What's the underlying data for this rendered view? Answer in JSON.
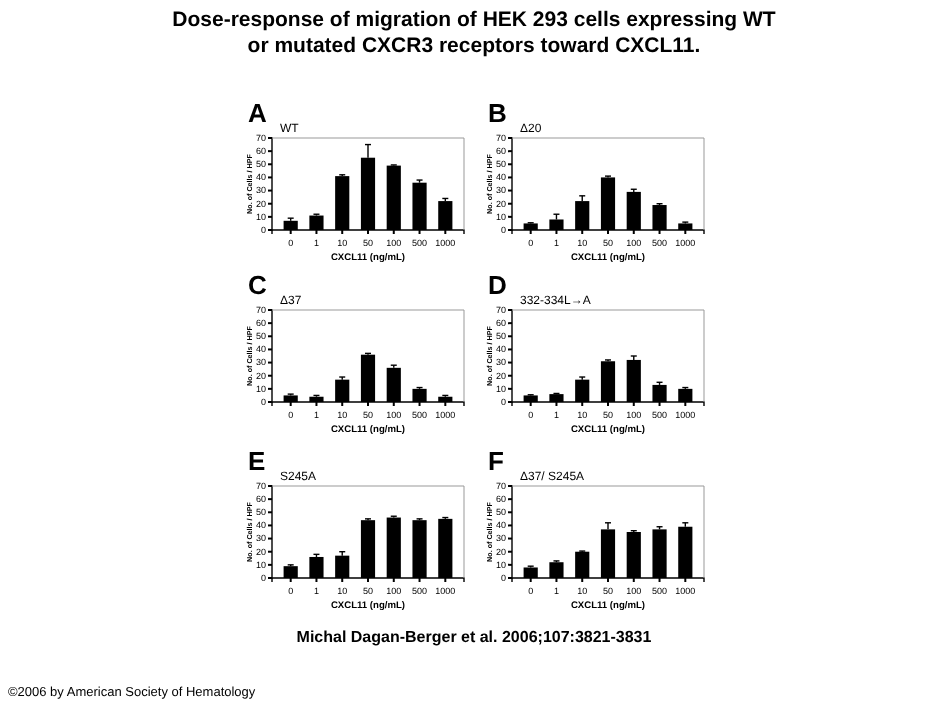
{
  "chart_data": [
    {
      "type": "bar",
      "title": "A",
      "subtitle": "WT",
      "xlabel": "CXCL11 (ng/mL)",
      "ylabel": "No. of Cells / HPF",
      "categories": [
        "0",
        "1",
        "10",
        "50",
        "100",
        "500",
        "1000"
      ],
      "values": [
        7,
        11,
        41,
        55,
        49,
        36,
        22
      ],
      "errors": [
        2,
        1,
        1,
        10,
        0.5,
        2,
        2
      ],
      "color": "#000000",
      "ylim": [
        0,
        70
      ],
      "yticks": [
        0,
        10,
        20,
        30,
        40,
        50,
        60,
        70
      ],
      "annotations": [
        "Dose-response of migration of HEK 293 cells expressing WT or mutated CXCR3 receptors toward CXCL11."
      ]
    },
    {
      "type": "bar",
      "title": "B",
      "subtitle": "Δ20",
      "xlabel": "CXCL11 (ng/mL)",
      "ylabel": "No. of Cells / HPF",
      "categories": [
        "0",
        "1",
        "10",
        "50",
        "100",
        "500",
        "1000"
      ],
      "values": [
        5,
        8,
        22,
        40,
        29,
        19,
        5
      ],
      "errors": [
        0.5,
        4,
        4,
        1,
        2,
        1,
        1
      ],
      "color": "#000000",
      "ylim": [
        0,
        70
      ],
      "yticks": [
        0,
        10,
        20,
        30,
        40,
        50,
        60,
        70
      ]
    },
    {
      "type": "bar",
      "title": "C",
      "subtitle": "Δ37",
      "xlabel": "CXCL11 (ng/mL)",
      "ylabel": "No. of Cells / HPF",
      "categories": [
        "0",
        "1",
        "10",
        "50",
        "100",
        "500",
        "1000"
      ],
      "values": [
        5,
        4,
        17,
        36,
        26,
        10,
        4
      ],
      "errors": [
        1,
        1,
        2,
        1,
        2,
        1,
        1
      ],
      "color": "#000000",
      "ylim": [
        0,
        70
      ],
      "yticks": [
        0,
        10,
        20,
        30,
        40,
        50,
        60,
        70
      ]
    },
    {
      "type": "bar",
      "title": "D",
      "subtitle": "332-334L→A",
      "xlabel": "CXCL11 (ng/mL)",
      "ylabel": "No. of Cells / HPF",
      "categories": [
        "0",
        "1",
        "10",
        "50",
        "100",
        "500",
        "1000"
      ],
      "values": [
        5,
        6,
        17,
        31,
        32,
        13,
        10
      ],
      "errors": [
        0.5,
        0.5,
        2,
        1,
        3,
        2,
        1
      ],
      "color": "#000000",
      "ylim": [
        0,
        70
      ],
      "yticks": [
        0,
        10,
        20,
        30,
        40,
        50,
        60,
        70
      ]
    },
    {
      "type": "bar",
      "title": "E",
      "subtitle": "S245A",
      "xlabel": "CXCL11 (ng/mL)",
      "ylabel": "No. of Cells / HPF",
      "categories": [
        "0",
        "1",
        "10",
        "50",
        "100",
        "500",
        "1000"
      ],
      "values": [
        9,
        16,
        17,
        44,
        46,
        44,
        45
      ],
      "errors": [
        1,
        2,
        3,
        1,
        1,
        1,
        1
      ],
      "color": "#000000",
      "ylim": [
        0,
        70
      ],
      "yticks": [
        0,
        10,
        20,
        30,
        40,
        50,
        60,
        70
      ]
    },
    {
      "type": "bar",
      "title": "F",
      "subtitle": "Δ37/ S245A",
      "xlabel": "CXCL11 (ng/mL)",
      "ylabel": "No. of Cells / HPF",
      "categories": [
        "0",
        "1",
        "10",
        "50",
        "100",
        "500",
        "1000"
      ],
      "values": [
        8,
        12,
        20,
        37,
        35,
        37,
        39
      ],
      "errors": [
        1,
        1,
        0.5,
        5,
        1,
        2,
        3
      ],
      "color": "#000000",
      "ylim": [
        0,
        70
      ],
      "yticks": [
        0,
        10,
        20,
        30,
        40,
        50,
        60,
        70
      ],
      "annotations": [
        "Michal Dagan-Berger et al. 2006;107:3821-3831",
        "©2006 by American Society of Hematology"
      ]
    }
  ]
}
